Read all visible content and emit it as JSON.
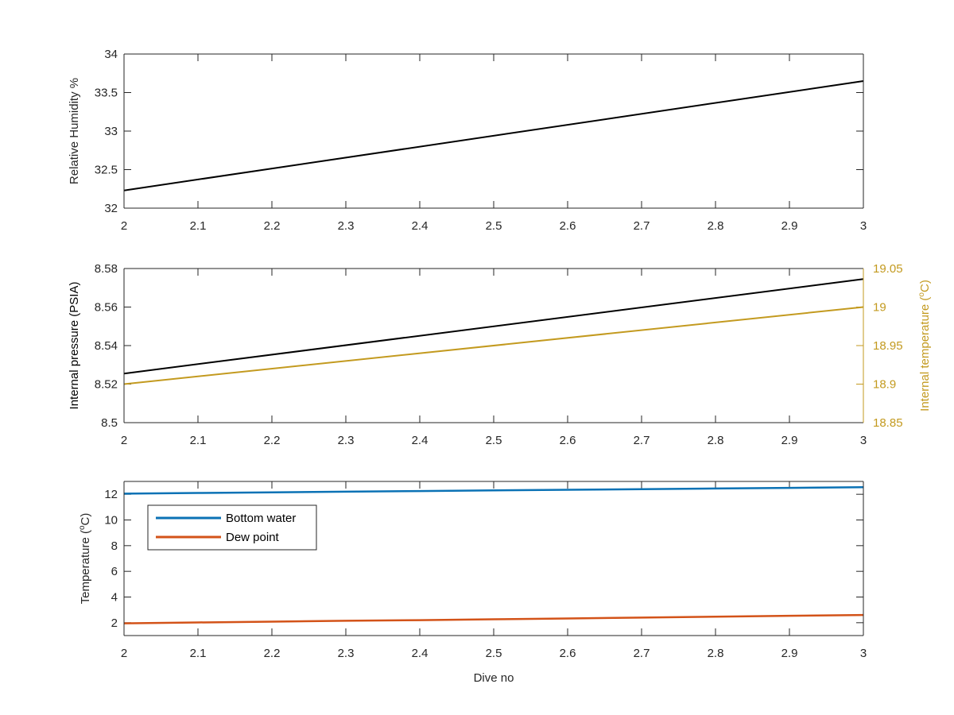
{
  "chart_data": [
    {
      "type": "line",
      "xlabel": "",
      "ylabel": "Relative Humidity %",
      "xlim": [
        2,
        3
      ],
      "ylim": [
        32,
        34
      ],
      "xticks": [
        2,
        2.1,
        2.2,
        2.3,
        2.4,
        2.5,
        2.6,
        2.7,
        2.8,
        2.9,
        3
      ],
      "xtick_labels": [
        "2",
        "2.1",
        "2.2",
        "2.3",
        "2.4",
        "2.5",
        "2.6",
        "2.7",
        "2.8",
        "2.9",
        "3"
      ],
      "yticks": [
        32,
        32.5,
        33,
        33.5,
        34
      ],
      "ytick_labels": [
        "32",
        "32.5",
        "33",
        "33.5",
        "34"
      ],
      "grid": false,
      "series": [
        {
          "x": [
            2,
            3
          ],
          "y": [
            32.23,
            33.65
          ],
          "color": "#000000"
        }
      ]
    },
    {
      "type": "line",
      "xlabel": "",
      "ylabel": "Internal pressure (PSIA)",
      "y2label": "Internal temperature (°C)",
      "xlim": [
        2,
        3
      ],
      "ylim": [
        8.5,
        8.58
      ],
      "y2lim": [
        18.85,
        19.05
      ],
      "xticks": [
        2,
        2.1,
        2.2,
        2.3,
        2.4,
        2.5,
        2.6,
        2.7,
        2.8,
        2.9,
        3
      ],
      "xtick_labels": [
        "2",
        "2.1",
        "2.2",
        "2.3",
        "2.4",
        "2.5",
        "2.6",
        "2.7",
        "2.8",
        "2.9",
        "3"
      ],
      "yticks": [
        8.5,
        8.52,
        8.54,
        8.56,
        8.58
      ],
      "ytick_labels": [
        "8.5",
        "8.52",
        "8.54",
        "8.56",
        "8.58"
      ],
      "y2ticks": [
        18.85,
        18.9,
        18.95,
        19,
        19.05
      ],
      "y2tick_labels": [
        "18.85",
        "18.9",
        "18.95",
        "19",
        "19.05"
      ],
      "y2color": "#c39a1f",
      "grid": false,
      "series": [
        {
          "axis": "left",
          "x": [
            2,
            3
          ],
          "y": [
            8.5255,
            8.5745
          ],
          "color": "#000000"
        },
        {
          "axis": "right",
          "x": [
            2,
            3
          ],
          "y": [
            18.9,
            19.0
          ],
          "color": "#c39a1f"
        }
      ]
    },
    {
      "type": "line",
      "xlabel": "Dive no",
      "ylabel": "Temperature (°C)",
      "xlim": [
        2,
        3
      ],
      "ylim": [
        1,
        13
      ],
      "xticks": [
        2,
        2.1,
        2.2,
        2.3,
        2.4,
        2.5,
        2.6,
        2.7,
        2.8,
        2.9,
        3
      ],
      "xtick_labels": [
        "2",
        "2.1",
        "2.2",
        "2.3",
        "2.4",
        "2.5",
        "2.6",
        "2.7",
        "2.8",
        "2.9",
        "3"
      ],
      "yticks": [
        2,
        4,
        6,
        8,
        10,
        12
      ],
      "ytick_labels": [
        "2",
        "4",
        "6",
        "8",
        "10",
        "12"
      ],
      "grid": false,
      "legend": "upper-left",
      "series": [
        {
          "name": "Bottom water",
          "x": [
            2,
            2.1,
            2.2,
            2.3,
            2.4,
            2.5,
            2.6,
            2.7,
            2.8,
            2.9,
            3
          ],
          "y": [
            12.05,
            12.1,
            12.15,
            12.2,
            12.25,
            12.3,
            12.35,
            12.4,
            12.45,
            12.5,
            12.55
          ],
          "color": "#0b72b5"
        },
        {
          "name": "Dew point",
          "x": [
            2,
            2.1,
            2.2,
            2.3,
            2.4,
            2.5,
            2.6,
            2.7,
            2.8,
            2.9,
            3
          ],
          "y": [
            1.95,
            2.02,
            2.08,
            2.15,
            2.2,
            2.27,
            2.33,
            2.4,
            2.47,
            2.54,
            2.6
          ],
          "color": "#d35319"
        }
      ]
    }
  ]
}
